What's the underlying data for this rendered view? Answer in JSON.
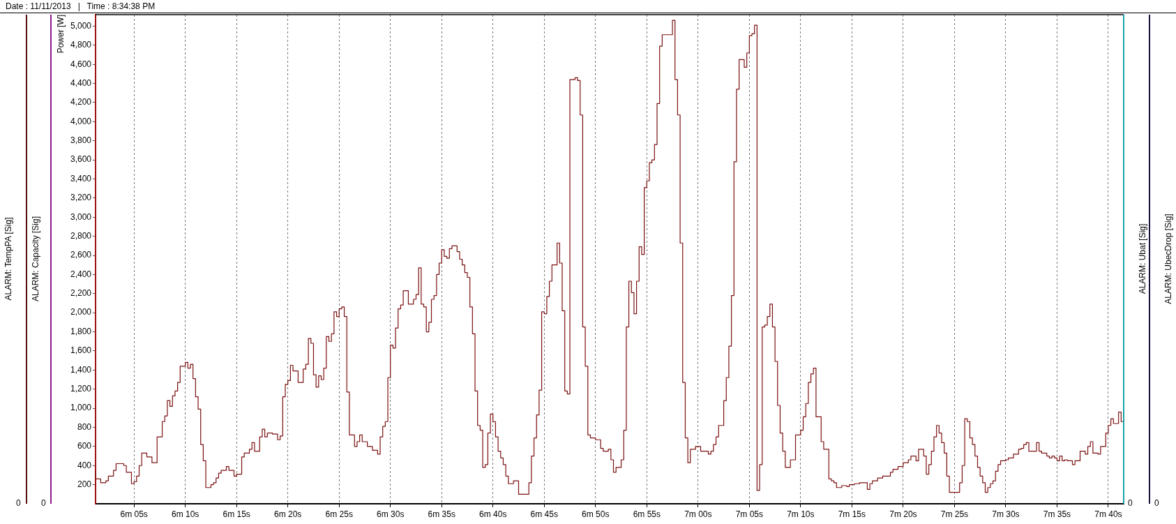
{
  "chart_data": {
    "type": "step",
    "ylabel": "Power [W]",
    "color": "#7b1010",
    "grid": "x",
    "line_style": "solid",
    "annotations": [
      "Date : 11/11/2013   |   Time : 8:34:38 PM",
      "ALARM: TempPA [Sig]",
      "0",
      "ALARM: Capacity [Sig]",
      "0",
      "ALARM: Ubat [Sig]",
      "0",
      "ALARM: UbecDrop [Sig]",
      "0"
    ],
    "ylim": [
      0,
      5120
    ],
    "yticks": [
      200,
      400,
      600,
      800,
      {
        "value": 1000,
        "label": "1,000"
      },
      {
        "value": 1200,
        "label": "1,200"
      },
      {
        "value": 1400,
        "label": "1,400"
      },
      {
        "value": 1600,
        "label": "1,600"
      },
      {
        "value": 1800,
        "label": "1,800"
      },
      {
        "value": 2000,
        "label": "2,000"
      },
      {
        "value": 2200,
        "label": "2,200"
      },
      {
        "value": 2400,
        "label": "2,400"
      },
      {
        "value": 2600,
        "label": "2,600"
      },
      {
        "value": 2800,
        "label": "2,800"
      },
      {
        "value": 3000,
        "label": "3,000"
      },
      {
        "value": 3200,
        "label": "3,200"
      },
      {
        "value": 3400,
        "label": "3,400"
      },
      {
        "value": 3600,
        "label": "3,600"
      },
      {
        "value": 3800,
        "label": "3,800"
      },
      {
        "value": 4000,
        "label": "4,000"
      },
      {
        "value": 4200,
        "label": "4,200"
      },
      {
        "value": 4400,
        "label": "4,400"
      },
      {
        "value": 4600,
        "label": "4,600"
      },
      {
        "value": 4800,
        "label": "4,800"
      },
      {
        "value": 5000,
        "label": "5,000"
      }
    ],
    "categories": [
      null,
      null,
      null,
      null,
      null,
      null,
      null,
      null,
      null,
      null,
      null,
      null,
      null,
      null,
      null,
      "6m 05s",
      null,
      null,
      null,
      null,
      null,
      null,
      null,
      null,
      null,
      null,
      null,
      null,
      null,
      null,
      null,
      null,
      null,
      null,
      null,
      "6m 10s",
      null,
      null,
      null,
      null,
      null,
      null,
      null,
      null,
      null,
      null,
      null,
      null,
      null,
      null,
      null,
      null,
      null,
      null,
      null,
      "6m 15s",
      null,
      null,
      null,
      null,
      null,
      null,
      null,
      null,
      null,
      null,
      null,
      null,
      null,
      null,
      null,
      null,
      null,
      null,
      null,
      "6m 20s",
      null,
      null,
      null,
      null,
      null,
      null,
      null,
      null,
      null,
      null,
      null,
      null,
      null,
      null,
      null,
      null,
      null,
      null,
      null,
      "6m 25s",
      null,
      null,
      null,
      null,
      null,
      null,
      null,
      null,
      null,
      null,
      null,
      null,
      null,
      null,
      null,
      null,
      null,
      null,
      null,
      "6m 30s",
      null,
      null,
      null,
      null,
      null,
      null,
      null,
      null,
      null,
      null,
      null,
      null,
      null,
      null,
      null,
      null,
      null,
      null,
      null,
      "6m 35s",
      null,
      null,
      null,
      null,
      null,
      null,
      null,
      null,
      null,
      null,
      null,
      null,
      null,
      null,
      null,
      null,
      null,
      null,
      null,
      "6m 40s",
      null,
      null,
      null,
      null,
      null,
      null,
      null,
      null,
      null,
      null,
      null,
      null,
      null,
      null,
      null,
      null,
      null,
      null,
      null,
      "6m 45s",
      null,
      null,
      null,
      null,
      null,
      null,
      null,
      null,
      null,
      null,
      null,
      null,
      null,
      null,
      null,
      null,
      null,
      null,
      null,
      "6m 50s",
      null,
      null,
      null,
      null,
      null,
      null,
      null,
      null,
      null,
      null,
      null,
      null,
      null,
      null,
      null,
      null,
      null,
      null,
      null,
      "6m 55s",
      null,
      null,
      null,
      null,
      null,
      null,
      null,
      null,
      null,
      null,
      null,
      null,
      null,
      null,
      null,
      null,
      null,
      null,
      null,
      "7m 00s",
      null,
      null,
      null,
      null,
      null,
      null,
      null,
      null,
      null,
      null,
      null,
      null,
      null,
      null,
      null,
      null,
      null,
      null,
      null,
      "7m 05s",
      null,
      null,
      null,
      null,
      null,
      null,
      null,
      null,
      null,
      null,
      null,
      null,
      null,
      null,
      null,
      null,
      null,
      null,
      null,
      "7m 10s",
      null,
      null,
      null,
      null,
      null,
      null,
      null,
      null,
      null,
      null,
      null,
      null,
      null,
      null,
      null,
      null,
      null,
      null,
      null,
      "7m 15s",
      null,
      null,
      null,
      null,
      null,
      null,
      null,
      null,
      null,
      null,
      null,
      null,
      null,
      null,
      null,
      null,
      null,
      null,
      null,
      "7m 20s",
      null,
      null,
      null,
      null,
      null,
      null,
      null,
      null,
      null,
      null,
      null,
      null,
      null,
      null,
      null,
      null,
      null,
      null,
      null,
      "7m 25s",
      null,
      null,
      null,
      null,
      null,
      null,
      null,
      null,
      null,
      null,
      null,
      null,
      null,
      null,
      null,
      null,
      null,
      null,
      null,
      "7m 30s",
      null,
      null,
      null,
      null,
      null,
      null,
      null,
      null,
      null,
      null,
      null,
      null,
      null,
      null,
      null,
      null,
      null,
      null,
      null,
      "7m 35s",
      null,
      null,
      null,
      null,
      null,
      null,
      null,
      null,
      null,
      null,
      null,
      null,
      null,
      null,
      null,
      null,
      null,
      null,
      null,
      "7m 40s",
      null,
      null,
      null,
      null,
      null,
      null
    ],
    "values": [
      330,
      260,
      260,
      220,
      220,
      240,
      290,
      290,
      350,
      420,
      420,
      420,
      400,
      330,
      330,
      210,
      230,
      290,
      400,
      530,
      530,
      490,
      490,
      430,
      430,
      700,
      700,
      860,
      920,
      1080,
      1020,
      1130,
      1180,
      1270,
      1440,
      1440,
      1480,
      1420,
      1460,
      1310,
      1120,
      990,
      620,
      450,
      170,
      170,
      200,
      220,
      270,
      320,
      350,
      350,
      390,
      350,
      350,
      290,
      310,
      310,
      490,
      530,
      530,
      570,
      640,
      550,
      550,
      700,
      780,
      700,
      740,
      740,
      730,
      730,
      670,
      710,
      1120,
      1250,
      1290,
      1450,
      1390,
      1390,
      1270,
      1270,
      1410,
      1460,
      1730,
      1680,
      1350,
      1220,
      1340,
      1300,
      1420,
      1750,
      1700,
      1780,
      2010,
      1960,
      2040,
      2060,
      1960,
      1170,
      720,
      720,
      600,
      650,
      720,
      650,
      650,
      600,
      600,
      560,
      560,
      520,
      700,
      810,
      860,
      1320,
      1660,
      1630,
      1840,
      2040,
      2080,
      2230,
      2230,
      2090,
      2090,
      2140,
      2190,
      2470,
      2090,
      2060,
      1800,
      1900,
      2140,
      2180,
      2400,
      2520,
      2660,
      2590,
      2570,
      2670,
      2700,
      2700,
      2640,
      2560,
      2500,
      2420,
      2370,
      2060,
      1780,
      1180,
      820,
      770,
      380,
      410,
      740,
      940,
      860,
      700,
      550,
      480,
      410,
      290,
      210,
      210,
      240,
      240,
      100,
      100,
      100,
      100,
      220,
      500,
      690,
      930,
      1190,
      2010,
      1990,
      2170,
      2330,
      2500,
      2500,
      2730,
      2520,
      2020,
      1180,
      1150,
      4440,
      4440,
      4460,
      4430,
      4070,
      1850,
      1440,
      720,
      690,
      690,
      670,
      670,
      580,
      550,
      550,
      570,
      460,
      330,
      380,
      380,
      460,
      770,
      1850,
      2330,
      2210,
      1990,
      2330,
      2690,
      2610,
      3310,
      3380,
      3570,
      3600,
      3760,
      4190,
      4790,
      4910,
      4910,
      4910,
      4910,
      5060,
      4440,
      4070,
      2730,
      1270,
      690,
      430,
      570,
      570,
      600,
      600,
      550,
      550,
      550,
      520,
      550,
      620,
      700,
      820,
      820,
      1080,
      1320,
      1650,
      2180,
      3580,
      4340,
      4650,
      4650,
      4570,
      4720,
      4900,
      4920,
      5010,
      140,
      410,
      1850,
      1870,
      1960,
      2090,
      1850,
      1490,
      1030,
      740,
      550,
      380,
      380,
      460,
      460,
      720,
      720,
      770,
      910,
      1050,
      1270,
      1360,
      1420,
      910,
      910,
      650,
      570,
      570,
      260,
      240,
      220,
      170,
      170,
      190,
      190,
      180,
      200,
      200,
      210,
      210,
      220,
      220,
      220,
      150,
      210,
      240,
      240,
      270,
      270,
      290,
      290,
      290,
      330,
      360,
      360,
      390,
      390,
      430,
      430,
      460,
      500,
      500,
      450,
      570,
      570,
      500,
      310,
      410,
      550,
      700,
      820,
      740,
      640,
      530,
      290,
      120,
      120,
      120,
      120,
      220,
      400,
      890,
      860,
      690,
      620,
      500,
      380,
      290,
      220,
      120,
      170,
      210,
      240,
      340,
      410,
      450,
      450,
      460,
      480,
      480,
      520,
      520,
      570,
      580,
      620,
      640,
      550,
      550,
      550,
      640,
      550,
      530,
      530,
      500,
      480,
      500,
      480,
      450,
      500,
      450,
      460,
      450,
      450,
      410,
      450,
      450,
      550,
      550,
      520,
      600,
      650,
      530,
      530,
      520,
      600,
      600,
      740,
      820,
      890,
      840,
      840,
      960,
      860
    ]
  }
}
